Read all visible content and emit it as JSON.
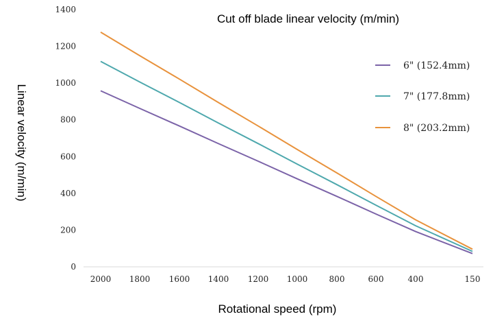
{
  "chart_data": {
    "type": "line",
    "title": "Cut off blade linear velocity (m/min)",
    "xlabel": "Rotational speed (rpm)",
    "ylabel": "Linear velocity (m/min)",
    "x_ticks": [
      "2000",
      "1800",
      "1600",
      "1400",
      "1200",
      "1000",
      "800",
      "600",
      "400",
      "150"
    ],
    "y_ticks": [
      "0",
      "200",
      "400",
      "600",
      "800",
      "1000",
      "1200",
      "1400"
    ],
    "ylim": [
      0,
      1400
    ],
    "grid": false,
    "legend_position": "right",
    "x": [
      2000,
      150
    ],
    "series": [
      {
        "name": "6\" (152.4mm)",
        "color": "#7b63a8",
        "values": [
          958,
          72
        ]
      },
      {
        "name": "7\" (177.8mm)",
        "color": "#4ea8ad",
        "values": [
          1118,
          84
        ]
      },
      {
        "name": "8\" (203.2mm)",
        "color": "#e8923c",
        "values": [
          1277,
          96
        ]
      }
    ]
  }
}
